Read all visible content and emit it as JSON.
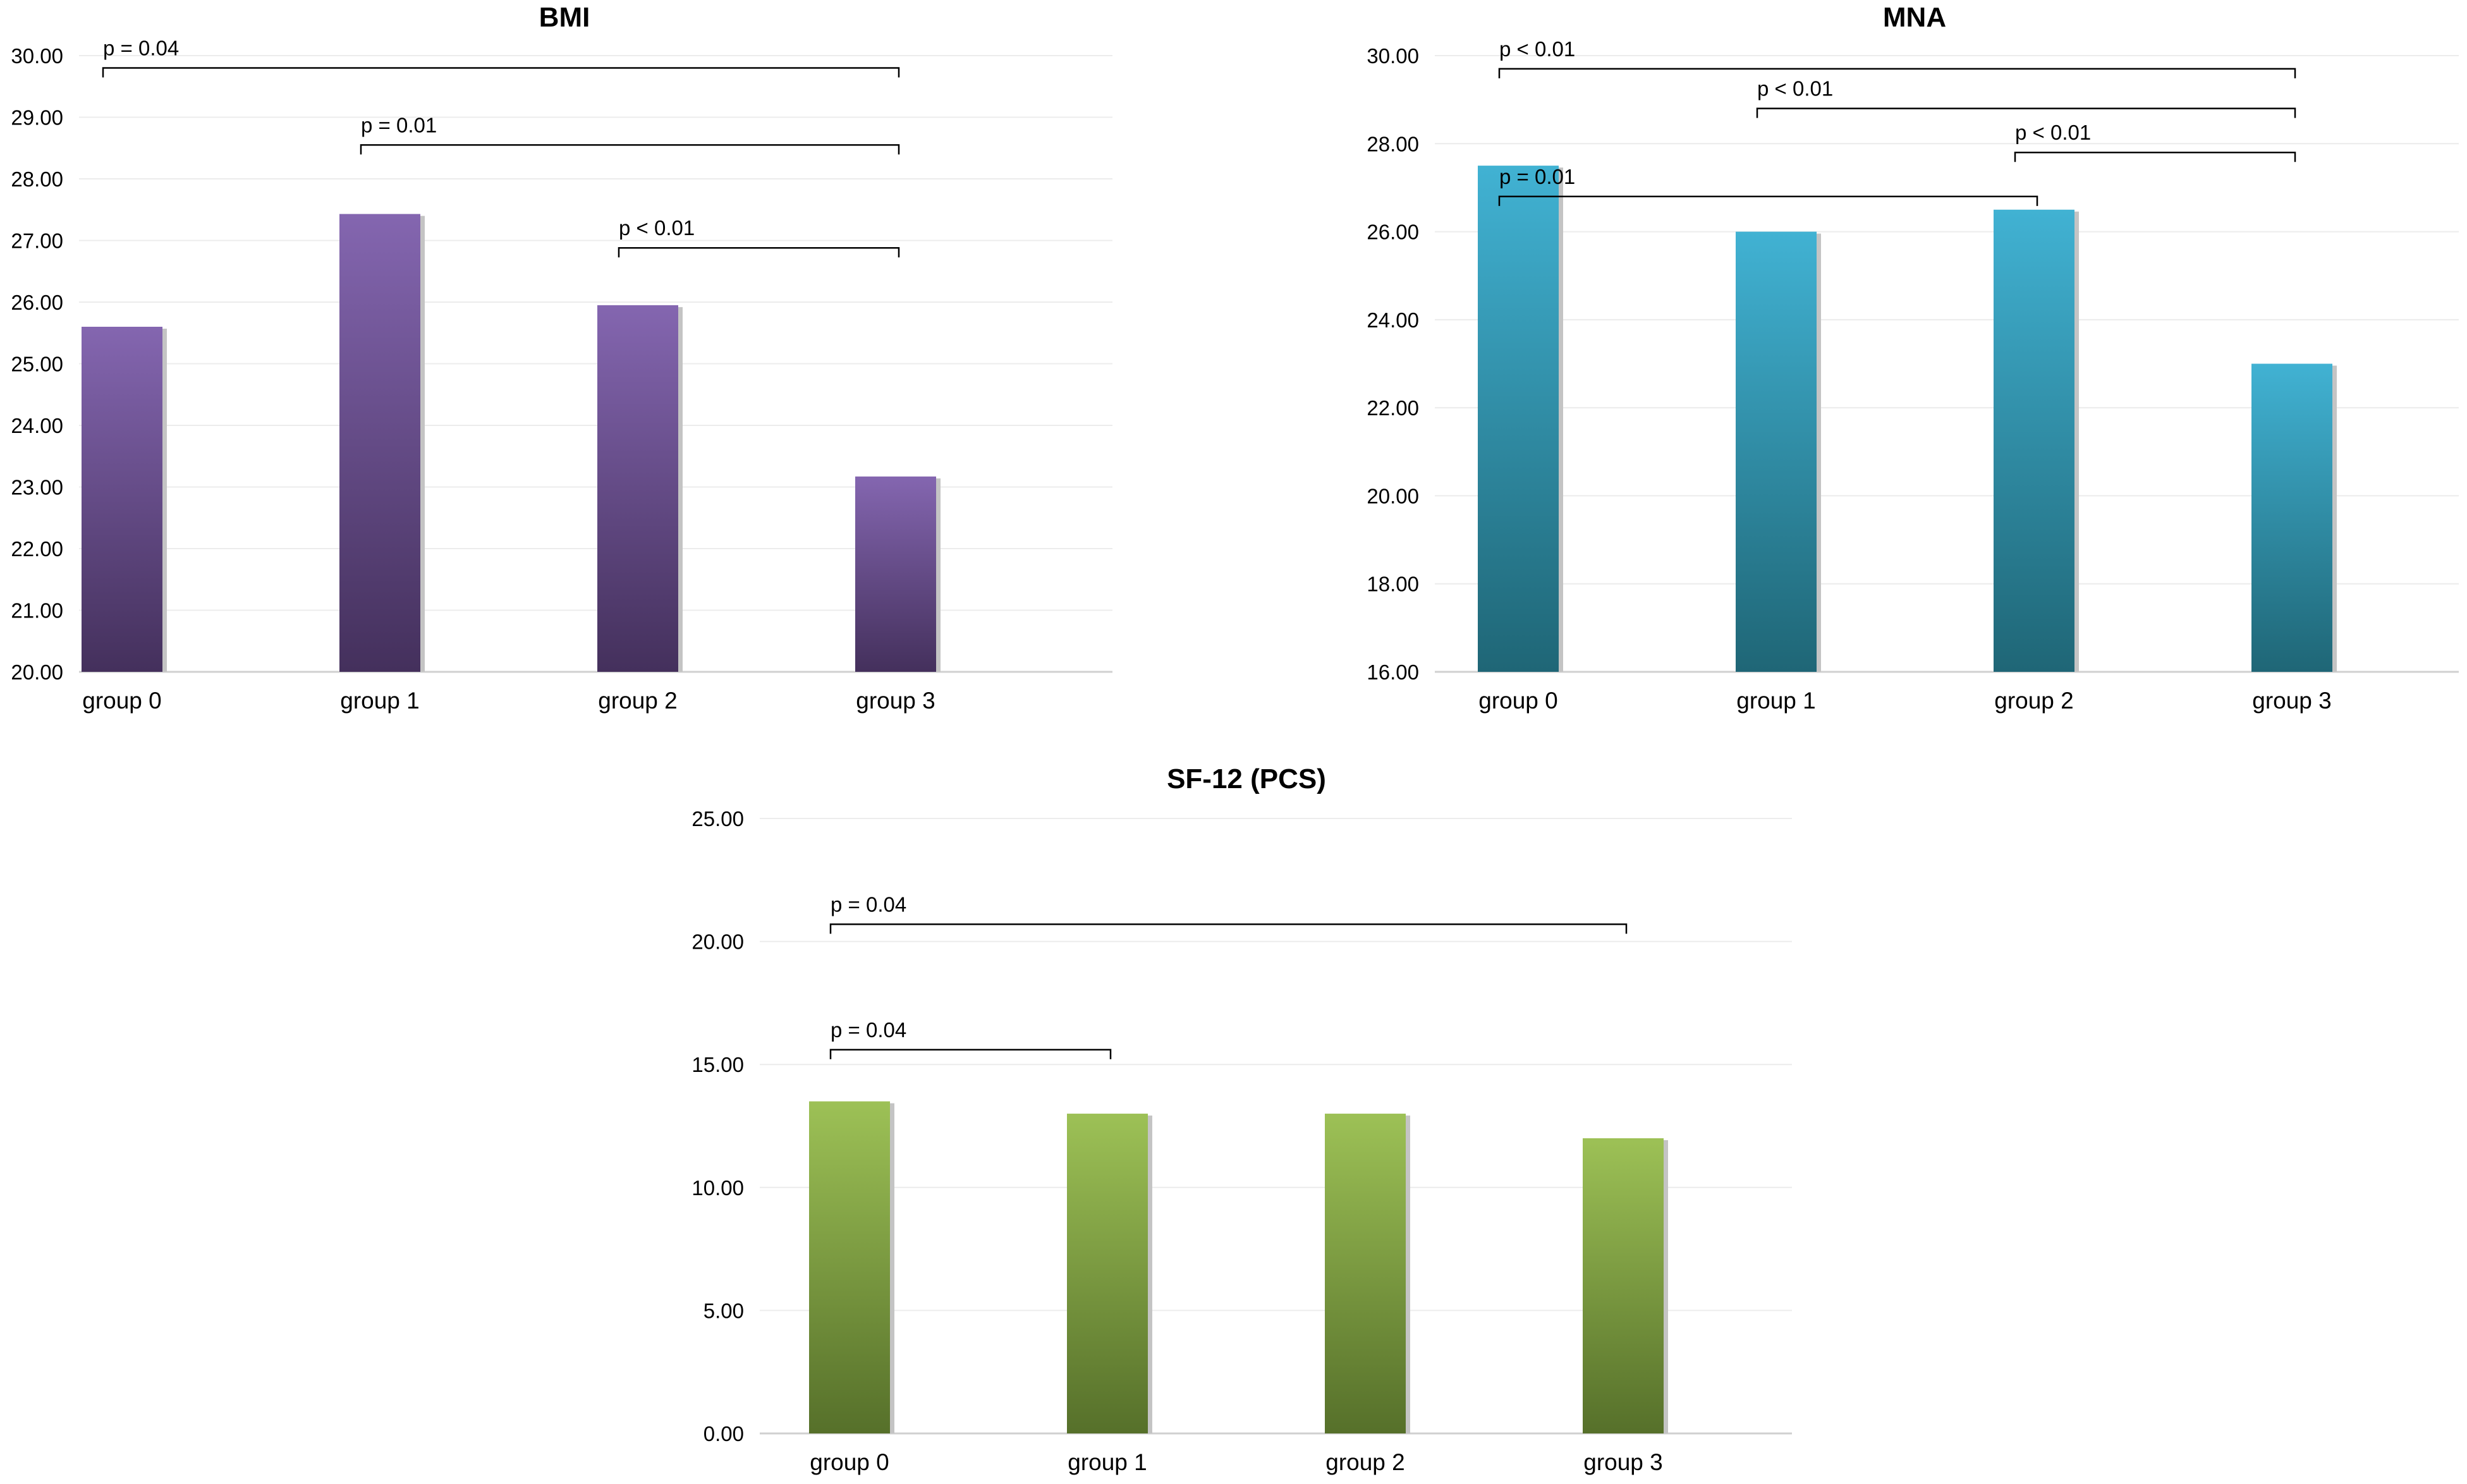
{
  "chart_data": [
    {
      "id": "bmi",
      "type": "bar",
      "title": "BMI",
      "categories": [
        "group 0",
        "group 1",
        "group 2",
        "group 3"
      ],
      "values": [
        25.6,
        27.43,
        25.95,
        23.17
      ],
      "ylim": [
        20,
        30
      ],
      "yticks": [
        "20.00",
        "21.00",
        "22.00",
        "23.00",
        "24.00",
        "25.00",
        "26.00",
        "27.00",
        "28.00",
        "29.00",
        "30.00"
      ],
      "grid": true,
      "colors": {
        "top": "#8466b0",
        "bottom": "#44305c",
        "shadow": "#c4c4c4"
      },
      "comparisons": [
        {
          "label": "p = 0.04",
          "from": 0,
          "to": 3,
          "y": 29.8
        },
        {
          "label": "p = 0.01",
          "from": 1,
          "to": 3,
          "y": 28.55
        },
        {
          "label": "p < 0.01",
          "from": 2,
          "to": 3,
          "y": 26.88
        }
      ]
    },
    {
      "id": "mna",
      "type": "bar",
      "title": "MNA",
      "categories": [
        "group 0",
        "group 1",
        "group 2",
        "group 3"
      ],
      "values": [
        27.5,
        26.0,
        26.5,
        23.0
      ],
      "ylim": [
        16,
        30
      ],
      "yticks": [
        "16.00",
        "18.00",
        "20.00",
        "22.00",
        "24.00",
        "26.00",
        "28.00",
        "30.00"
      ],
      "grid": true,
      "colors": {
        "top": "#41b2d3",
        "bottom": "#1f6676",
        "shadow": "#c4c4c4"
      },
      "comparisons": [
        {
          "label": "p < 0.01",
          "from": 0,
          "to": 3,
          "y": 29.7
        },
        {
          "label": "p < 0.01",
          "from": 1,
          "to": 3,
          "y": 28.8
        },
        {
          "label": "p < 0.01",
          "from": 2,
          "to": 3,
          "y": 27.8
        },
        {
          "label": "p = 0.01",
          "from": 0,
          "to": 2,
          "y": 26.8
        }
      ]
    },
    {
      "id": "sf12",
      "type": "bar",
      "title": "SF-12 (PCS)",
      "categories": [
        "group 0",
        "group 1",
        "group 2",
        "group 3"
      ],
      "values": [
        13.5,
        13.0,
        13.0,
        12.0
      ],
      "ylim": [
        0,
        25
      ],
      "yticks": [
        "0.00",
        "5.00",
        "10.00",
        "15.00",
        "20.00",
        "25.00"
      ],
      "grid": true,
      "colors": {
        "top": "#9dc156",
        "bottom": "#56702a",
        "shadow": "#c4c4c4"
      },
      "comparisons": [
        {
          "label": "p = 0.04",
          "from": 0,
          "to": 3,
          "y": 20.7
        },
        {
          "label": "p = 0.04",
          "from": 0,
          "to": 1,
          "y": 15.6
        }
      ]
    }
  ]
}
